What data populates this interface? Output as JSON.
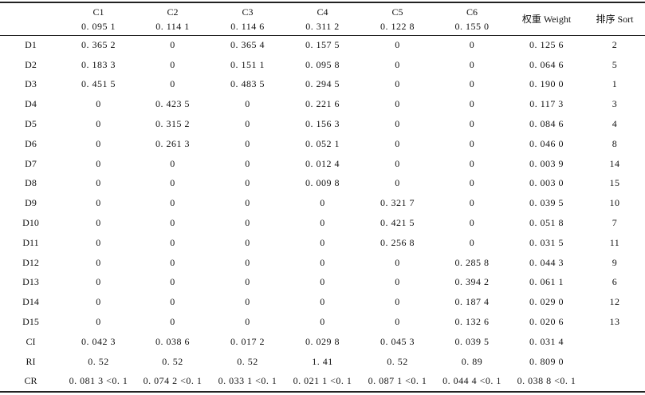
{
  "table": {
    "header": {
      "blank": "",
      "criteria": [
        {
          "name": "C1",
          "weight": "0. 095 1"
        },
        {
          "name": "C2",
          "weight": "0. 114 1"
        },
        {
          "name": "C3",
          "weight": "0. 114 6"
        },
        {
          "name": "C4",
          "weight": "0. 311 2"
        },
        {
          "name": "C5",
          "weight": "0. 122 8"
        },
        {
          "name": "C6",
          "weight": "0. 155 0"
        }
      ],
      "weight_col": "权重 Weight",
      "sort_col": "排序 Sort"
    },
    "rows": [
      {
        "label": "D1",
        "c": [
          "0. 365 2",
          "0",
          "0. 365 4",
          "0. 157 5",
          "0",
          "0"
        ],
        "weight": "0. 125 6",
        "sort": "2"
      },
      {
        "label": "D2",
        "c": [
          "0. 183 3",
          "0",
          "0. 151 1",
          "0. 095 8",
          "0",
          "0"
        ],
        "weight": "0. 064 6",
        "sort": "5"
      },
      {
        "label": "D3",
        "c": [
          "0. 451 5",
          "0",
          "0. 483 5",
          "0. 294 5",
          "0",
          "0"
        ],
        "weight": "0. 190 0",
        "sort": "1"
      },
      {
        "label": "D4",
        "c": [
          "0",
          "0. 423 5",
          "0",
          "0. 221 6",
          "0",
          "0"
        ],
        "weight": "0. 117 3",
        "sort": "3"
      },
      {
        "label": "D5",
        "c": [
          "0",
          "0. 315 2",
          "0",
          "0. 156 3",
          "0",
          "0"
        ],
        "weight": "0. 084 6",
        "sort": "4"
      },
      {
        "label": "D6",
        "c": [
          "0",
          "0. 261 3",
          "0",
          "0. 052 1",
          "0",
          "0"
        ],
        "weight": "0. 046 0",
        "sort": "8"
      },
      {
        "label": "D7",
        "c": [
          "0",
          "0",
          "0",
          "0. 012 4",
          "0",
          "0"
        ],
        "weight": "0. 003 9",
        "sort": "14"
      },
      {
        "label": "D8",
        "c": [
          "0",
          "0",
          "0",
          "0. 009 8",
          "0",
          "0"
        ],
        "weight": "0. 003 0",
        "sort": "15"
      },
      {
        "label": "D9",
        "c": [
          "0",
          "0",
          "0",
          "0",
          "0. 321 7",
          "0"
        ],
        "weight": "0. 039 5",
        "sort": "10"
      },
      {
        "label": "D10",
        "c": [
          "0",
          "0",
          "0",
          "0",
          "0. 421 5",
          "0"
        ],
        "weight": "0. 051 8",
        "sort": "7"
      },
      {
        "label": "D11",
        "c": [
          "0",
          "0",
          "0",
          "0",
          "0. 256 8",
          "0"
        ],
        "weight": "0. 031 5",
        "sort": "11"
      },
      {
        "label": "D12",
        "c": [
          "0",
          "0",
          "0",
          "0",
          "0",
          "0. 285 8"
        ],
        "weight": "0. 044 3",
        "sort": "9"
      },
      {
        "label": "D13",
        "c": [
          "0",
          "0",
          "0",
          "0",
          "0",
          "0. 394 2"
        ],
        "weight": "0. 061 1",
        "sort": "6"
      },
      {
        "label": "D14",
        "c": [
          "0",
          "0",
          "0",
          "0",
          "0",
          "0. 187 4"
        ],
        "weight": "0. 029 0",
        "sort": "12"
      },
      {
        "label": "D15",
        "c": [
          "0",
          "0",
          "0",
          "0",
          "0",
          "0. 132 6"
        ],
        "weight": "0. 020 6",
        "sort": "13"
      },
      {
        "label": "CI",
        "c": [
          "0. 042 3",
          "0. 038 6",
          "0. 017 2",
          "0. 029 8",
          "0. 045 3",
          "0. 039 5"
        ],
        "weight": "0. 031 4",
        "sort": ""
      },
      {
        "label": "RI",
        "c": [
          "0. 52",
          "0. 52",
          "0. 52",
          "1. 41",
          "0. 52",
          "0. 89"
        ],
        "weight": "0. 809 0",
        "sort": ""
      },
      {
        "label": "CR",
        "c": [
          "0. 081 3 <0. 1",
          "0. 074 2 <0. 1",
          "0. 033 1 <0. 1",
          "0. 021 1 <0. 1",
          "0. 087 1 <0. 1",
          "0. 044 4 <0. 1"
        ],
        "weight": "0. 038 8 <0. 1",
        "sort": ""
      }
    ]
  }
}
